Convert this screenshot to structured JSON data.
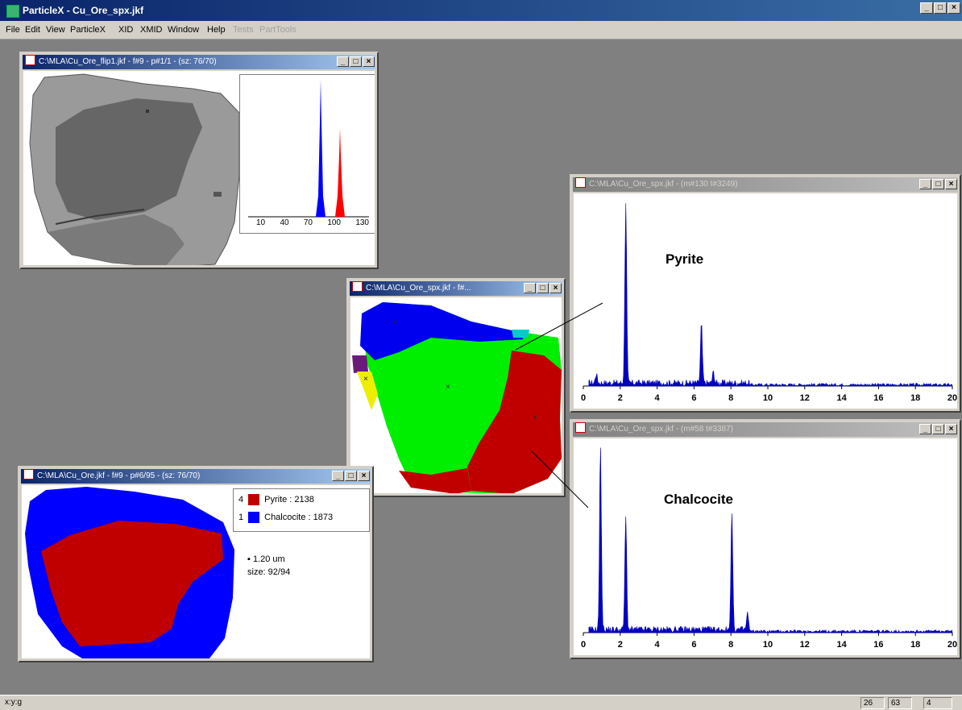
{
  "app": {
    "title": "ParticleX - Cu_Ore_spx.jkf",
    "menu": [
      "File",
      "Edit",
      "View",
      "ParticleX",
      "XID",
      "XMID",
      "Window",
      "Help",
      "Tests",
      "PartTools"
    ],
    "disabled_menu": [
      "Tests",
      "PartTools"
    ],
    "controls": {
      "minimize": "_",
      "maximize": "□",
      "close": "×"
    }
  },
  "windows": {
    "bse": {
      "title": "C:\\MLA\\Cu_Ore_flip1.jkf - f#9 - p#1/1 - (sz: 76/70)",
      "histogram": {
        "ticks": [
          "10",
          "40",
          "70",
          "100",
          "130"
        ],
        "colors": {
          "peak1": "#0000ff",
          "peak2": "#ff0000"
        }
      }
    },
    "phase_map": {
      "title": "C:\\MLA\\Cu_Ore_spx.jkf - f#..."
    },
    "spec_pyrite": {
      "title": "C:\\MLA\\Cu_Ore_spx.jkf - (m#130 t#3249)",
      "label": "Pyrite",
      "chart_data": {
        "type": "line",
        "x_ticks": [
          "0",
          "2",
          "4",
          "6",
          "8",
          "10",
          "12",
          "14",
          "16",
          "18",
          "20"
        ],
        "xlim": [
          0,
          20
        ],
        "series": [
          {
            "color": "#0000c0",
            "peaks": [
              [
                0.7,
                0.05
              ],
              [
                2.3,
                1.0
              ],
              [
                6.4,
                0.33
              ],
              [
                7.05,
                0.06
              ]
            ]
          }
        ]
      }
    },
    "spec_chalcocite": {
      "title": "C:\\MLA\\Cu_Ore_spx.jkf - (m#58 t#3387)",
      "label": "Chalcocite",
      "chart_data": {
        "type": "line",
        "x_ticks": [
          "0",
          "2",
          "4",
          "6",
          "8",
          "10",
          "12",
          "14",
          "16",
          "18",
          "20"
        ],
        "xlim": [
          0,
          20
        ],
        "series": [
          {
            "color": "#0000c0",
            "peaks": [
              [
                0.93,
                1.0
              ],
              [
                2.3,
                0.62
              ],
              [
                8.05,
                0.64
              ],
              [
                8.9,
                0.09
              ]
            ]
          }
        ]
      }
    },
    "classified": {
      "title": "C:\\MLA\\Cu_Ore.jkf - f#9 - p#6/95 - (sz: 76/70)",
      "legend": [
        {
          "count": "4",
          "label": "Pyrite : 2138",
          "color": "#c00000"
        },
        {
          "count": "1",
          "label": "Chalcocite : 1873",
          "color": "#0000ff"
        }
      ],
      "pixel": "▪ 1.20 um",
      "size": "size: 92/94"
    }
  },
  "status": {
    "left": "x:y:g",
    "cells": [
      "26",
      "63",
      "4"
    ]
  }
}
